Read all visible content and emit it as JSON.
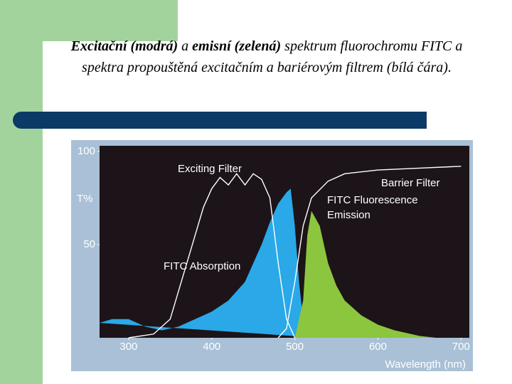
{
  "slide": {
    "title_runs": [
      "Excitační (modrá)",
      " a ",
      "emisní (zelená)",
      " spektrum fluorochromu FITC a spektra propouštěná excitačním a bariérovým filtrem (bílá čára)."
    ]
  },
  "chart_data": {
    "type": "line",
    "xlabel": "Wavelength (nm)",
    "ylabel": "T%",
    "xlim": [
      265,
      710
    ],
    "ylim": [
      0,
      103
    ],
    "xticks": [
      300,
      400,
      500,
      600,
      700
    ],
    "yticks": [
      50,
      100
    ],
    "series": [
      {
        "name": "FITC Absorption",
        "color": "#2aa8e8",
        "fill": true,
        "x": [
          265,
          280,
          300,
          320,
          340,
          360,
          380,
          400,
          420,
          440,
          460,
          470,
          480,
          490,
          495,
          500,
          505,
          510,
          520,
          530
        ],
        "values": [
          8,
          10,
          10,
          6,
          4,
          6,
          10,
          14,
          20,
          30,
          50,
          62,
          72,
          78,
          80,
          60,
          30,
          10,
          2,
          0
        ]
      },
      {
        "name": "FITC Fluorescence Emission",
        "color": "#8cc63f",
        "fill": true,
        "x": [
          500,
          510,
          515,
          520,
          530,
          540,
          550,
          560,
          580,
          600,
          620,
          650,
          670
        ],
        "values": [
          0,
          20,
          55,
          68,
          60,
          40,
          28,
          20,
          12,
          7,
          4,
          1,
          0
        ]
      },
      {
        "name": "Exciting Filter",
        "color": "#ffffff",
        "fill": false,
        "x": [
          300,
          330,
          350,
          370,
          390,
          400,
          410,
          420,
          430,
          440,
          450,
          460,
          470,
          480,
          490,
          500
        ],
        "values": [
          0,
          2,
          10,
          40,
          70,
          80,
          86,
          82,
          88,
          82,
          88,
          85,
          75,
          40,
          10,
          0
        ]
      },
      {
        "name": "Barrier Filter",
        "color": "#ffffff",
        "fill": false,
        "x": [
          480,
          490,
          500,
          510,
          520,
          540,
          560,
          600,
          650,
          700
        ],
        "values": [
          0,
          5,
          30,
          60,
          75,
          84,
          88,
          90,
          91,
          92
        ]
      }
    ]
  }
}
